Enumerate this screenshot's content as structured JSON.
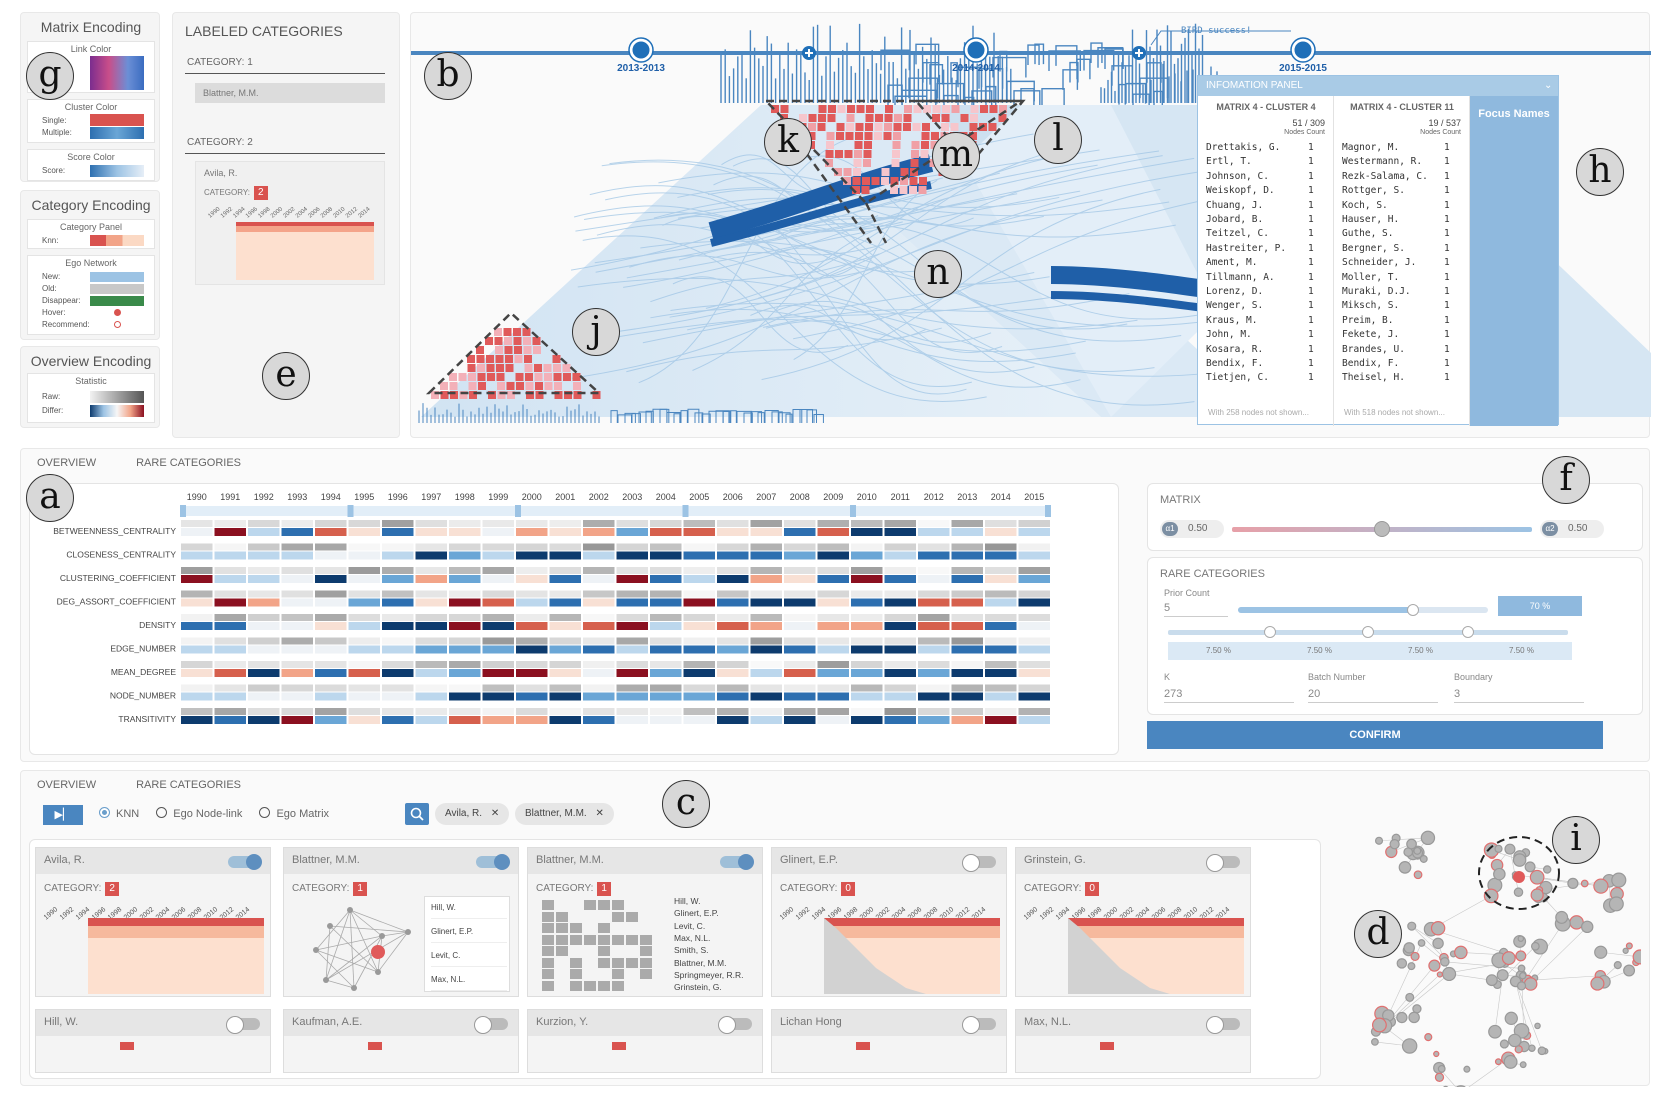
{
  "matrix_encoding": {
    "title": "Matrix Encoding",
    "link_color": {
      "title": "Link Color"
    },
    "cluster_color": {
      "title": "Cluster Color",
      "single": "Single:",
      "multiple": "Multiple:"
    },
    "score_color": {
      "title": "Score Color",
      "score": "Score:"
    }
  },
  "category_encoding": {
    "title": "Category Encoding",
    "category_panel": {
      "title": "Category Panel",
      "knn": "Knn:"
    },
    "ego_network": {
      "title": "Ego Network",
      "rows": [
        "New:",
        "Old:",
        "Disappear:",
        "Hover:",
        "Recommend:"
      ]
    }
  },
  "overview_encoding": {
    "title": "Overview Encoding",
    "statistic": {
      "title": "Statistic",
      "raw": "Raw:",
      "differ": "Differ:"
    }
  },
  "labeled_categories": {
    "title": "LABELED CATEGORIES",
    "cat1_label": "CATEGORY: 1",
    "cat1_item": "Blattner, M.M.",
    "cat2_label": "CATEGORY: 2",
    "cat2_card": {
      "name": "Avila, R.",
      "category_label": "CATEGORY:",
      "category_value": "2"
    },
    "years": [
      "1990",
      "1992",
      "1994",
      "1996",
      "1998",
      "2000",
      "2002",
      "2004",
      "2006",
      "2008",
      "2010",
      "2012",
      "2014"
    ]
  },
  "timeline": {
    "labels": [
      "2013-2013",
      "2014-2014",
      "2015-2015"
    ],
    "annotation": "BIRD success!"
  },
  "info_panel": {
    "title": "INFOMATION PANEL",
    "focus_names": "Focus Names",
    "col1": {
      "title": "MATRIX 4 - CLUSTER 4",
      "count": "51 / 309",
      "count_label": "Nodes Count",
      "rows": [
        [
          "Drettakis, G.",
          "1"
        ],
        [
          "Ertl, T.",
          "1"
        ],
        [
          "Johnson, C.",
          "1"
        ],
        [
          "Weiskopf, D.",
          "1"
        ],
        [
          "Chuang, J.",
          "1"
        ],
        [
          "Jobard, B.",
          "1"
        ],
        [
          "Teitzel, C.",
          "1"
        ],
        [
          "Hastreiter, P.",
          "1"
        ],
        [
          "Ament, M.",
          "1"
        ],
        [
          "Tillmann, A.",
          "1"
        ],
        [
          "Lorenz, D.",
          "1"
        ],
        [
          "Wenger, S.",
          "1"
        ],
        [
          "Kraus, M.",
          "1"
        ],
        [
          "John, M.",
          "1"
        ],
        [
          "Kosara, R.",
          "1"
        ],
        [
          "Bendix, F.",
          "1"
        ],
        [
          "Tietjen, C.",
          "1"
        ]
      ],
      "footer": "With 258 nodes not shown..."
    },
    "col2": {
      "title": "MATRIX 4 - CLUSTER 11",
      "count": "19 / 537",
      "count_label": "Nodes Count",
      "rows": [
        [
          "Magnor, M.",
          "1"
        ],
        [
          "Westermann, R.",
          "1"
        ],
        [
          "Rezk-Salama, C.",
          "1"
        ],
        [
          "Rottger, S.",
          "1"
        ],
        [
          "Koch, S.",
          "1"
        ],
        [
          "Hauser, H.",
          "1"
        ],
        [
          "Guthe, S.",
          "1"
        ],
        [
          "Bergner, S.",
          "1"
        ],
        [
          "Schneider, J.",
          "1"
        ],
        [
          "Moller, T.",
          "1"
        ],
        [
          "Muraki, D.J.",
          "1"
        ],
        [
          "Miksch, S.",
          "1"
        ],
        [
          "Preim, B.",
          "1"
        ],
        [
          "Fekete, J.",
          "1"
        ],
        [
          "Brandes, U.",
          "1"
        ],
        [
          "Bendix, F.",
          "1"
        ],
        [
          "Theisel, H.",
          "1"
        ]
      ],
      "footer": "With 518 nodes not shown..."
    }
  },
  "overview_tabs": [
    "OVERVIEW",
    "RARE CATEGORIES"
  ],
  "heatmap": {
    "years": [
      "1990",
      "1991",
      "1992",
      "1993",
      "1994",
      "1995",
      "1996",
      "1997",
      "1998",
      "1999",
      "2000",
      "2001",
      "2002",
      "2003",
      "2004",
      "2005",
      "2006",
      "2007",
      "2008",
      "2009",
      "2010",
      "2011",
      "2012",
      "2013",
      "2014",
      "2015"
    ],
    "metrics": [
      "BETWEENNESS_CENTRALITY",
      "CLOSENESS_CENTRALITY",
      "CLUSTERING_COEFFICIENT",
      "DEG_ASSORT_COEFFICIENT",
      "DENSITY",
      "EDGE_NUMBER",
      "MEAN_DEGREE",
      "NODE_NUMBER",
      "TRANSITIVITY"
    ]
  },
  "settings": {
    "matrix_title": "MATRIX",
    "alpha1_label": "α1",
    "alpha1": "0.50",
    "alpha2_label": "α2",
    "alpha2": "0.50",
    "alpha_ratio": 0.5,
    "rare_title": "RARE CATEGORIES",
    "prior_count_label": "Prior Count",
    "prior_count": "5",
    "prior_ratio": 0.7,
    "prior_pct": "70 %",
    "splits": [
      "7.50 %",
      "7.50 %",
      "7.50 %",
      "7.50 %"
    ],
    "k_label": "K",
    "k": "273",
    "batch_label": "Batch Number",
    "batch": "20",
    "boundary_label": "Boundary",
    "boundary": "3",
    "confirm": "CONFIRM"
  },
  "bottom": {
    "tabs": [
      "OVERVIEW",
      "RARE CATEGORIES"
    ],
    "modes": [
      "KNN",
      "Ego Node-link",
      "Ego Matrix"
    ],
    "chips": [
      "Avila, R.",
      "Blattner, M.M."
    ],
    "cards": [
      {
        "name": "Avila, R.",
        "category_label": "CATEGORY:",
        "category": "2",
        "on": true
      },
      {
        "name": "Blattner, M.M.",
        "category_label": "CATEGORY:",
        "category": "1",
        "on": true,
        "list": [
          "Hill, W.",
          "Glinert, E.P.",
          "Levit, C.",
          "Max, N.L."
        ]
      },
      {
        "name": "Blattner, M.M.",
        "category_label": "CATEGORY:",
        "category": "1",
        "on": true,
        "list": [
          "Hill, W.",
          "Glinert, E.P.",
          "Levit, C.",
          "Max, N.L.",
          "Smith, S.",
          "Blattner, M.M.",
          "Springmeyer, R.R.",
          "Grinstein, G."
        ]
      },
      {
        "name": "Glinert, E.P.",
        "category_label": "CATEGORY:",
        "category": "0",
        "on": false
      },
      {
        "name": "Grinstein, G.",
        "category_label": "CATEGORY:",
        "category": "0",
        "on": false
      }
    ],
    "row2": [
      "Hill, W.",
      "Kaufman, A.E.",
      "Kurzion, Y.",
      "Lichan Hong",
      "Max, N.L."
    ],
    "years": [
      "1990",
      "1992",
      "1994",
      "1996",
      "1998",
      "2000",
      "2002",
      "2004",
      "2006",
      "2008",
      "2010",
      "2012",
      "2014"
    ]
  },
  "labels": [
    "a",
    "b",
    "c",
    "d",
    "e",
    "f",
    "g",
    "h",
    "i",
    "j",
    "k",
    "l",
    "m",
    "n"
  ],
  "colors": {
    "accent": "#4a86c0",
    "red": "#d9534f",
    "light_blue": "#a9cbe6",
    "dark_blue": "#0d3b6e"
  }
}
